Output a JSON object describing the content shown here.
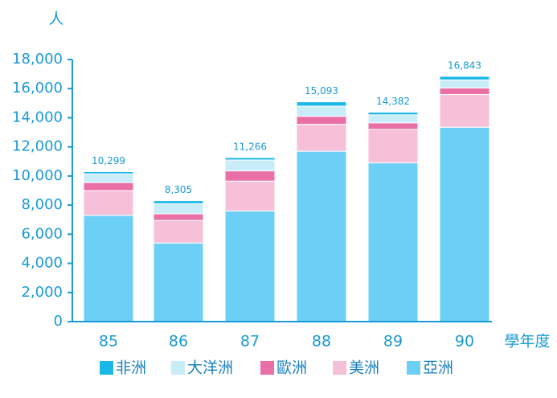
{
  "chart_data": {
    "type": "stacked_bar",
    "y_label": "人",
    "x_label": "學年度",
    "categories": [
      "85",
      "86",
      "87",
      "88",
      "89",
      "90"
    ],
    "series": [
      {
        "name": "非洲",
        "color": "#1ab8e8",
        "values": [
          149,
          205,
          166,
          293,
          182,
          243
        ]
      },
      {
        "name": "大洋洲",
        "color": "#c8ecf8",
        "values": [
          600,
          700,
          750,
          700,
          550,
          550
        ]
      },
      {
        "name": "歐洲",
        "color": "#e96fa6",
        "values": [
          550,
          450,
          700,
          550,
          450,
          450
        ]
      },
      {
        "name": "美洲",
        "color": "#f6c0d9",
        "values": [
          1700,
          1550,
          2050,
          1850,
          2300,
          2250
        ]
      },
      {
        "name": "亞洲",
        "color": "#6ccff5",
        "values": [
          7300,
          5400,
          7600,
          11700,
          10900,
          13350
        ]
      }
    ],
    "totals": [
      10299,
      8305,
      11266,
      15093,
      14382,
      16843
    ],
    "value_labels": [
      "10,299",
      "8,305",
      "11,266",
      "15,093",
      "14,382",
      "16,843"
    ],
    "ylim": [
      0,
      18000
    ],
    "yticks": [
      0,
      {
        "value": 2000,
        "label": "2,000"
      },
      {
        "value": 4000,
        "label": "4,000"
      },
      {
        "value": 6000,
        "label": "6,000"
      },
      {
        "value": 8000,
        "label": "8,000"
      },
      {
        "value": 10000,
        "label": "10,000"
      },
      {
        "value": 12000,
        "label": "12,000"
      },
      {
        "value": 14000,
        "label": "14,000"
      },
      {
        "value": 16000,
        "label": "16,000"
      },
      {
        "value": 18000,
        "label": "18,000"
      }
    ]
  }
}
